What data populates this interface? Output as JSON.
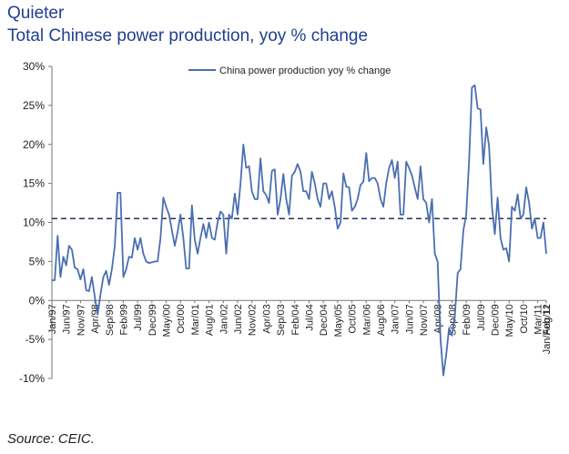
{
  "header": {
    "title": "Quieter",
    "subtitle": "Total Chinese power production, yoy % change"
  },
  "source": "Source:  CEIC.",
  "colors": {
    "series": "#4a6fb0",
    "reference": "#23305e",
    "axis": "#777777",
    "title": "#1f3f8f"
  },
  "chart_data": {
    "type": "line",
    "title": "Total Chinese power production, yoy % change",
    "xlabel": "",
    "ylabel": "",
    "ylim": [
      -10,
      30
    ],
    "yticks": [
      -10,
      -5,
      0,
      5,
      10,
      15,
      20,
      25,
      30
    ],
    "ytick_labels": [
      "-10%",
      "-5%",
      "0%",
      "5%",
      "10%",
      "15%",
      "20%",
      "25%",
      "30%"
    ],
    "xtick_labels": [
      "Jan/97",
      "Jun/97",
      "Nov/97",
      "Apr/98",
      "Sep/98",
      "Feb/99",
      "Jul/99",
      "Dec/99",
      "May/00",
      "Oct/00",
      "Mar/01",
      "Aug/01",
      "Jan/02",
      "Jun/02",
      "Nov/02",
      "Apr/03",
      "Sep/03",
      "Feb/04",
      "Jul/04",
      "Dec/04",
      "May/05",
      "Oct/05",
      "Mar/06",
      "Aug/06",
      "Jan/07",
      "Jun/07",
      "Nov/07",
      "Apr/08",
      "Sep/08",
      "Feb/09",
      "Jul/09",
      "Dec/09",
      "May/10",
      "Oct/10",
      "Mar/11",
      "Aug/11",
      "Jan/Feb 12"
    ],
    "reference_line": {
      "value": 10.5,
      "style": "dashed"
    },
    "legend": {
      "position": "top-center",
      "entries": [
        "China power production yoy % change"
      ]
    },
    "series": [
      {
        "name": "China power production yoy % change",
        "start": "Jan/97",
        "frequency": "monthly",
        "values": [
          2.6,
          2.6,
          8.3,
          3.0,
          5.6,
          4.5,
          7.0,
          6.5,
          4.2,
          4.0,
          2.7,
          4.0,
          1.3,
          1.2,
          3.0,
          0.5,
          -1.8,
          0.8,
          3.0,
          3.8,
          2.0,
          4.0,
          7.0,
          13.8,
          13.8,
          3.0,
          4.0,
          5.6,
          5.5,
          8.0,
          6.5,
          8.0,
          6.0,
          5.0,
          4.8,
          4.9,
          5.0,
          5.0,
          8.0,
          13.2,
          12.0,
          11.0,
          9.0,
          7.0,
          8.8,
          11.0,
          8.0,
          4.1,
          4.1,
          12.2,
          7.8,
          6.0,
          8.0,
          9.8,
          8.0,
          10.0,
          8.0,
          7.8,
          10.0,
          11.4,
          11.0,
          6.0,
          11.0,
          10.5,
          13.7,
          11.0,
          15.0,
          20.0,
          17.0,
          17.2,
          14.0,
          13.0,
          13.0,
          18.2,
          14.0,
          13.5,
          12.5,
          16.6,
          16.8,
          11.0,
          13.0,
          16.2,
          13.0,
          11.0,
          16.0,
          16.5,
          17.5,
          16.5,
          14.0,
          14.0,
          13.0,
          16.5,
          15.0,
          13.0,
          12.0,
          15.0,
          15.0,
          13.0,
          14.0,
          12.0,
          9.2,
          10.0,
          16.3,
          14.6,
          14.5,
          11.5,
          12.0,
          13.0,
          14.8,
          15.2,
          18.9,
          15.3,
          15.7,
          15.7,
          15.0,
          13.0,
          12.0,
          15.0,
          17.0,
          18.0,
          15.7,
          17.8,
          11.0,
          11.0,
          17.8,
          17.0,
          16.0,
          14.5,
          13.0,
          17.2,
          13.0,
          12.5,
          10.0,
          13.0,
          6.0,
          5.0,
          -5.0,
          -9.6,
          -7.0,
          -3.5,
          -4.5,
          -2.0,
          3.5,
          4.0,
          9.0,
          11.0,
          18.0,
          27.3,
          27.6,
          24.6,
          24.5,
          17.5,
          22.2,
          19.8,
          12.0,
          8.5,
          13.2,
          8.0,
          6.5,
          6.7,
          5.0,
          12.0,
          11.5,
          13.6,
          10.5,
          11.0,
          14.5,
          12.5,
          9.2,
          10.5,
          8.0,
          8.0,
          10.0,
          6.0
        ]
      }
    ]
  }
}
